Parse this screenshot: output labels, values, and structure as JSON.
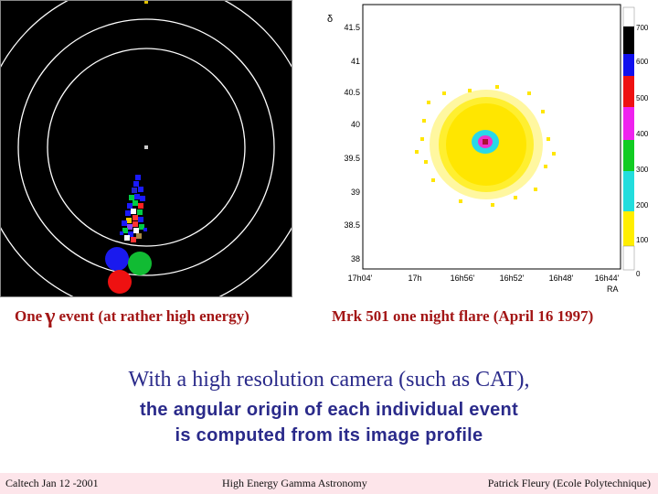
{
  "captions": {
    "left_pre": "One",
    "left_symbol": "γ",
    "left_post": "event (at rather high energy)",
    "right": "Mrk 501 one night flare (April 16 1997)"
  },
  "headline": {
    "line1": "With a high resolution camera (such as CAT),",
    "line2": "the angular origin of each individual event",
    "line3": "is computed from its image profile"
  },
  "footer": {
    "left": "Caltech Jan 12 -2001",
    "center": "High Energy Gamma Astronomy",
    "right": "Patrick Fleury (Ecole Polytechnique)"
  },
  "skymap": {
    "y_axis_symbol": "δ",
    "y_ticks": [
      "41.5",
      "41",
      "40.5",
      "40",
      "39.5",
      "39",
      "38.5",
      "38"
    ],
    "x_ticks": [
      "17h04'",
      "17h",
      "16h56'",
      "16h52'",
      "16h48'",
      "16h44'"
    ],
    "x_label": "RA",
    "colorbar_ticks": [
      "700",
      "600",
      "500",
      "400",
      "300",
      "200",
      "100",
      "0"
    ]
  }
}
